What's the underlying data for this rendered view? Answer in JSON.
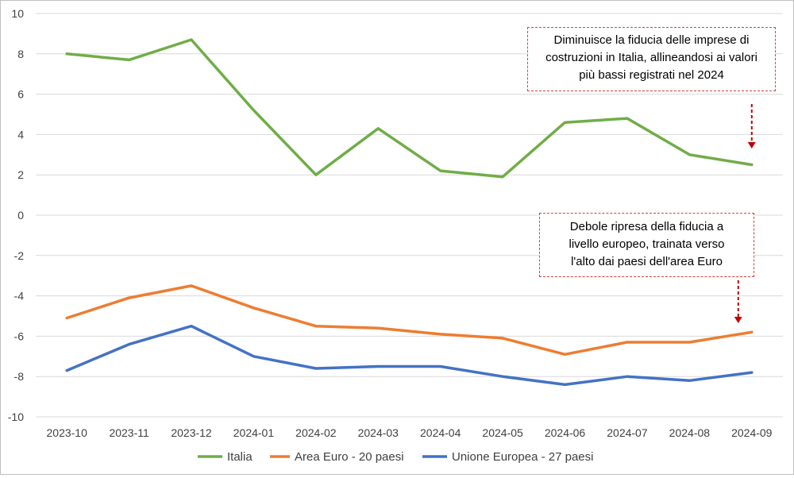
{
  "chart_data": {
    "type": "line",
    "categories": [
      "2023-10",
      "2023-11",
      "2023-12",
      "2024-01",
      "2024-02",
      "2024-03",
      "2024-04",
      "2024-05",
      "2024-06",
      "2024-07",
      "2024-08",
      "2024-09"
    ],
    "series": [
      {
        "name": "Italia",
        "color": "#70ad47",
        "values": [
          8.0,
          7.7,
          8.7,
          5.2,
          2.0,
          4.3,
          2.2,
          1.9,
          4.6,
          4.8,
          3.0,
          2.5
        ]
      },
      {
        "name": "Area Euro - 20 paesi",
        "color": "#ed7d31",
        "values": [
          -5.1,
          -4.1,
          -3.5,
          -4.6,
          -5.5,
          -5.6,
          -5.9,
          -6.1,
          -6.9,
          -6.3,
          -6.3,
          -5.8
        ]
      },
      {
        "name": "Unione Europea - 27 paesi",
        "color": "#4472c4",
        "values": [
          -7.7,
          -6.4,
          -5.5,
          -7.0,
          -7.6,
          -7.5,
          -7.5,
          -8.0,
          -8.4,
          -8.0,
          -8.2,
          -7.8
        ]
      }
    ],
    "ylim": [
      -10,
      10
    ],
    "yticks": [
      -10,
      -8,
      -6,
      -4,
      -2,
      0,
      2,
      4,
      6,
      8,
      10
    ],
    "grid": true,
    "legend_position": "bottom",
    "title": "",
    "xlabel": "",
    "ylabel": "",
    "annotations": [
      {
        "text": "Diminuisce la fiducia delle imprese di costruzioni in Italia, allineandosi ai valori più bassi registrati nel 2024",
        "lines": [
          "Diminuisce la fiducia delle imprese di",
          "costruzioni in Italia, allineandosi ai valori",
          "più bassi registrati nel 2024"
        ],
        "arrow_color": "#c00000"
      },
      {
        "text": "Debole ripresa della fiducia a livello europeo, trainata verso l'alto dai paesi dell'area Euro",
        "lines": [
          "Debole ripresa della fiducia a",
          "livello europeo, trainata verso",
          "l'alto dai paesi dell'area Euro"
        ],
        "arrow_color": "#c00000"
      }
    ],
    "gridline_color": "#d9d9d9",
    "annotation_border_color": "#d94040"
  }
}
